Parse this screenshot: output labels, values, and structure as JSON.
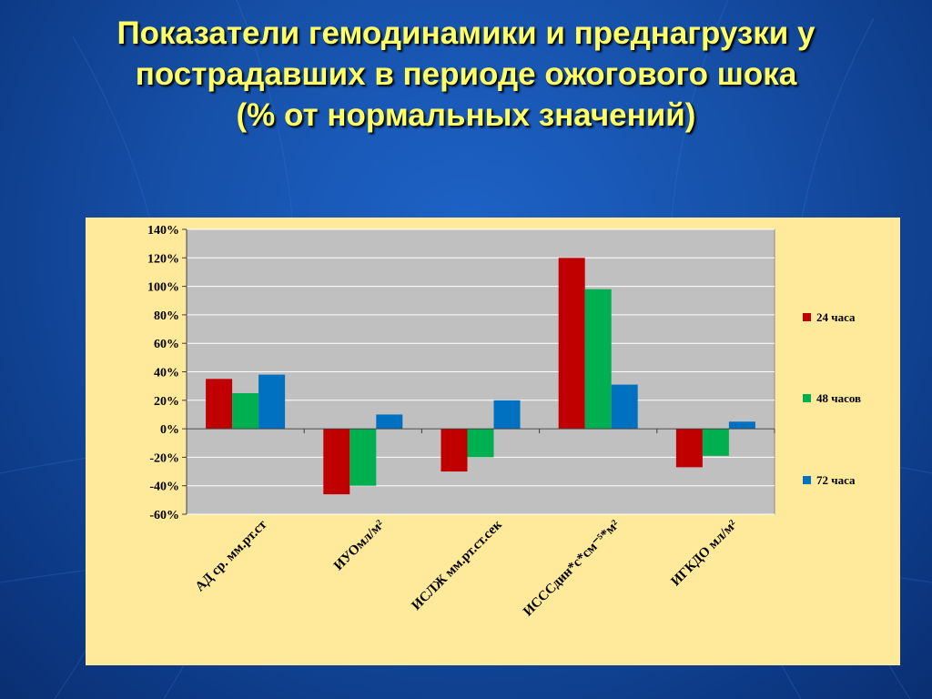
{
  "slide": {
    "title_lines": [
      "Показатели гемодинамики и преднагрузки у",
      "пострадавших в периоде ожогового шока",
      "(% от нормальных значений)"
    ]
  },
  "colors": {
    "background": "#1650a8",
    "title": "#ffff66",
    "chart_area": "#ffe99a",
    "plot_area": "#c0c0c0"
  },
  "chart_data": {
    "type": "bar",
    "categories": [
      "АД ср. мм.рт.ст",
      "ИУОмл/м²",
      "ИСЛЖ мм.рт.ст.сек",
      "ИСССдин*с*см⁻⁵*м²",
      "ИГКДО мл/м²"
    ],
    "series": [
      {
        "name": "24 часа",
        "color": "#c00000",
        "values": [
          35,
          -46,
          -30,
          120,
          -27
        ]
      },
      {
        "name": "48 часов",
        "color": "#00b050",
        "values": [
          25,
          -40,
          -20,
          98,
          -19
        ]
      },
      {
        "name": "72 часа",
        "color": "#0070c0",
        "values": [
          38,
          10,
          20,
          31,
          5
        ]
      }
    ],
    "y_ticks": [
      "140%",
      "120%",
      "100%",
      "80%",
      "60%",
      "40%",
      "20%",
      "0%",
      "-20%",
      "-40%",
      "-60%"
    ],
    "ylim": [
      -60,
      140
    ],
    "y_unit": "%",
    "grid": true,
    "legend_position": "right",
    "title": "",
    "xlabel": "",
    "ylabel": ""
  }
}
